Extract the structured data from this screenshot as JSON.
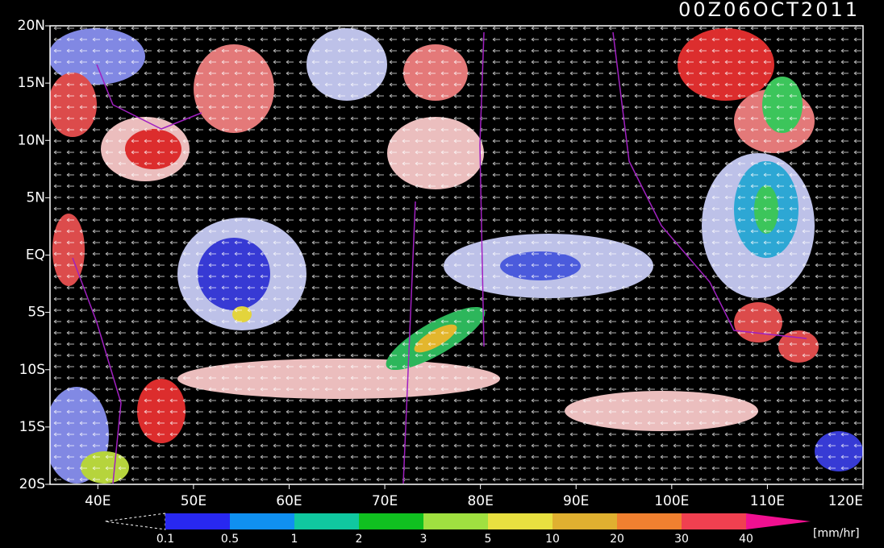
{
  "header": {
    "title": "00Z06OCT2011"
  },
  "map": {
    "lat_labels": [
      "20N",
      "15N",
      "10N",
      "5N",
      "EQ",
      "5S",
      "10S",
      "15S",
      "20S"
    ],
    "lon_labels": [
      "40E",
      "50E",
      "60E",
      "70E",
      "80E",
      "90E",
      "100E",
      "110E",
      "120E"
    ]
  },
  "colorbar": {
    "labels": [
      "0.1",
      "0.5",
      "1",
      "2",
      "3",
      "5",
      "10",
      "20",
      "30",
      "40"
    ],
    "unit": "[mm/hr]"
  }
}
